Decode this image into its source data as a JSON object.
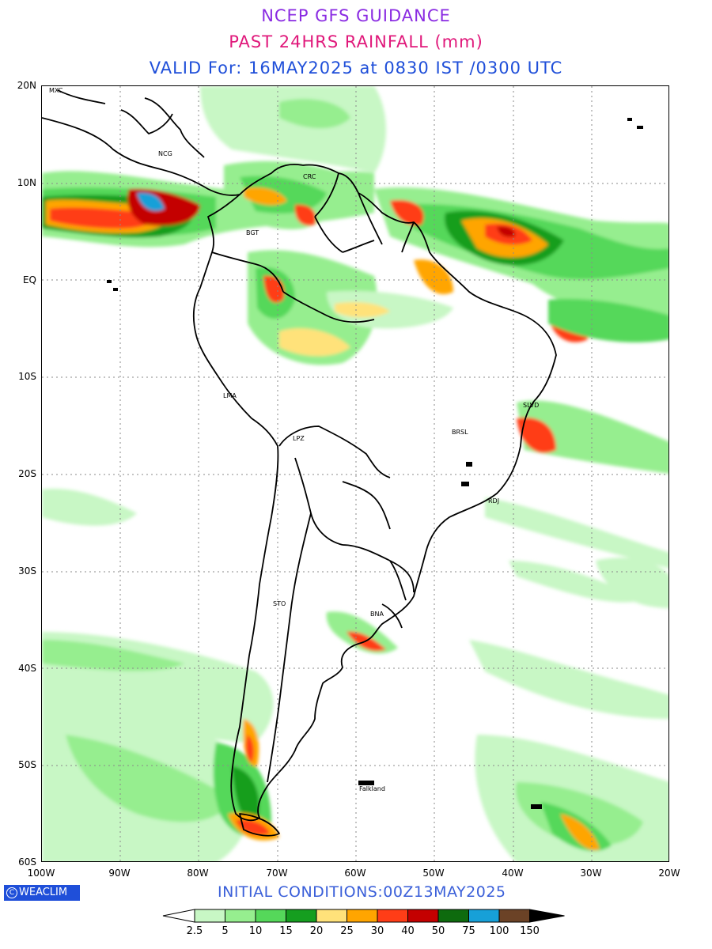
{
  "header": {
    "line1": "NCEP GFS GUIDANCE",
    "line2": "PAST 24HRS RAINFALL (mm)",
    "line3": "VALID For: 16MAY2025 at 0830 IST /0300 UTC",
    "line1_color": "#8a2be2",
    "line2_color": "#e0197b",
    "line3_color": "#1f4fd9"
  },
  "map": {
    "lat_labels": [
      "20N",
      "10N",
      "EQ",
      "10S",
      "20S",
      "30S",
      "40S",
      "50S",
      "60S"
    ],
    "lon_labels": [
      "100W",
      "90W",
      "80W",
      "70W",
      "60W",
      "50W",
      "40W",
      "30W",
      "20W"
    ],
    "cities": [
      {
        "id": "mxc",
        "label": "MXC"
      },
      {
        "id": "ncg",
        "label": "NCG"
      },
      {
        "id": "crc",
        "label": "CRC"
      },
      {
        "id": "bgt",
        "label": "BGT"
      },
      {
        "id": "lma",
        "label": "LMA"
      },
      {
        "id": "lpz",
        "label": "LPZ"
      },
      {
        "id": "slvd",
        "label": "SLVD"
      },
      {
        "id": "brsl",
        "label": "BRSL"
      },
      {
        "id": "rdj",
        "label": "RDJ"
      },
      {
        "id": "sto",
        "label": "STO"
      },
      {
        "id": "bna",
        "label": "BNA"
      },
      {
        "id": "falkland",
        "label": "Falkland"
      }
    ]
  },
  "footer": {
    "brand": "WEACLIM",
    "brand_icon": "c-circle-icon",
    "initial_conditions": "INITIAL CONDITIONS:00Z13MAY2025",
    "initial_color": "#3a5fd9"
  },
  "legend": {
    "labels": [
      "2.5",
      "5",
      "10",
      "15",
      "20",
      "25",
      "30",
      "40",
      "50",
      "75",
      "100",
      "150"
    ],
    "colors": [
      "#ffffff",
      "#c8f7c5",
      "#96ee8f",
      "#55d85a",
      "#159e1f",
      "#ffe27a",
      "#ffa500",
      "#ff3d17",
      "#c40000",
      "#0e6b0e",
      "#17a0d8",
      "#6b4226",
      "#000000"
    ]
  }
}
